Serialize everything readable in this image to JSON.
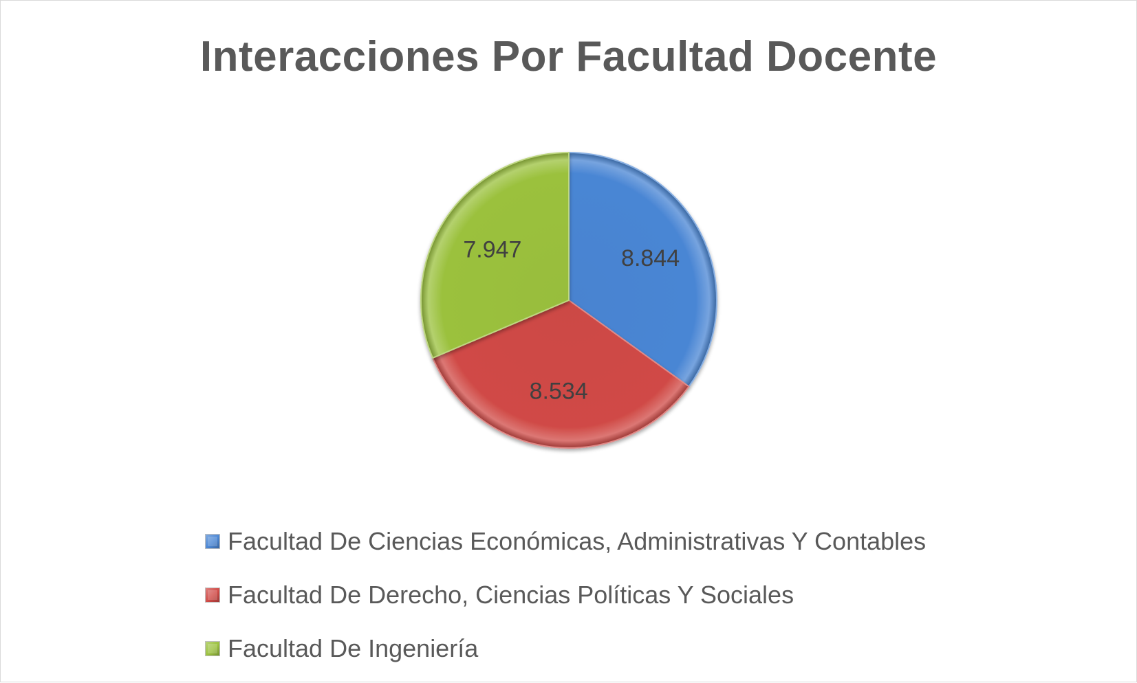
{
  "chart_data": {
    "type": "pie",
    "title": "Interacciones Por Facultad Docente",
    "categories": [
      "Facultad De Ciencias Económicas, Administrativas Y Contables",
      "Facultad De Derecho, Ciencias Políticas Y Sociales",
      "Facultad De Ingeniería"
    ],
    "values": [
      8844,
      8534,
      7947
    ],
    "data_labels": [
      "8.844",
      "8.534",
      "7.947"
    ],
    "colors": [
      "#4a86d4",
      "#d04a46",
      "#9bc13e"
    ],
    "legend_position": "bottom",
    "start_angle": "top",
    "direction": "clockwise"
  }
}
